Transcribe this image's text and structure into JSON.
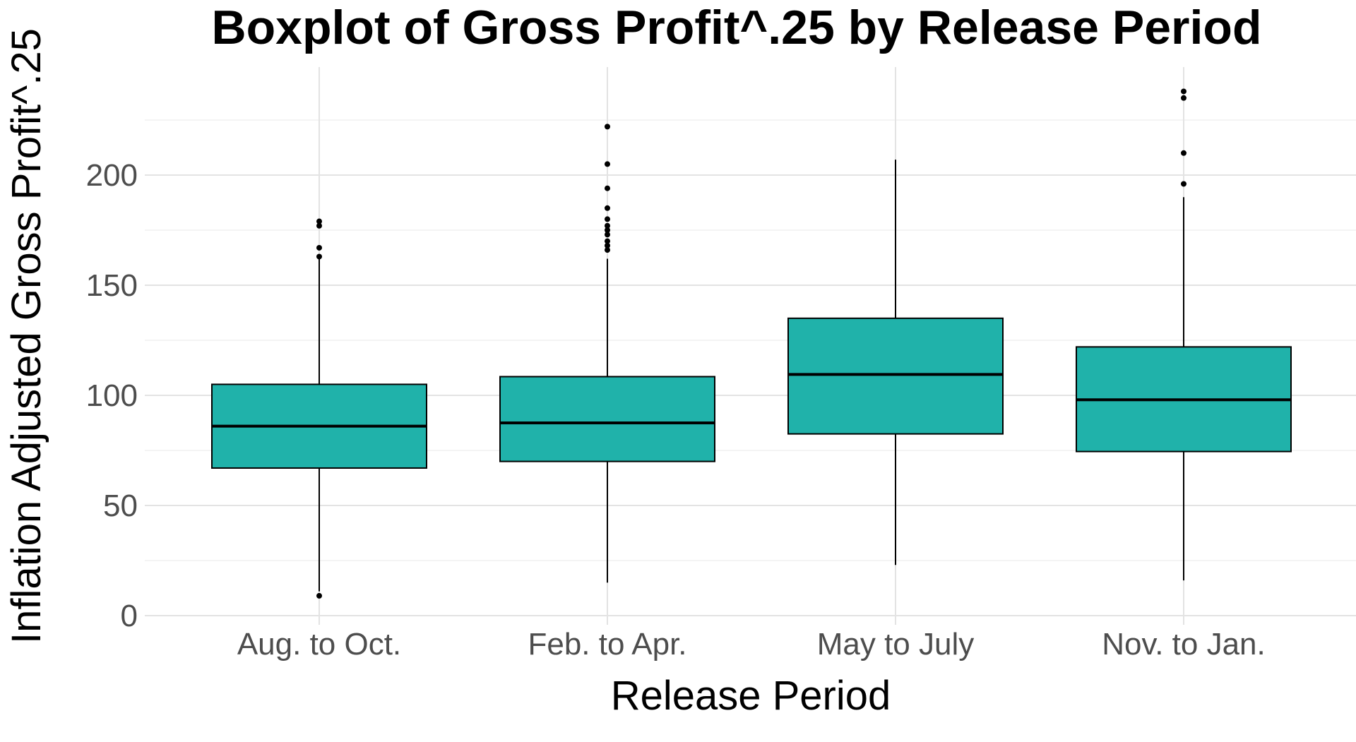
{
  "chart_data": {
    "type": "boxplot",
    "title": "Boxplot of Gross Profit^.25 by Release Period",
    "xlabel": "Release Period",
    "ylabel": "Inflation Adjusted Gross Profit^.25",
    "ylim": [
      -5,
      248
    ],
    "yticks": [
      0,
      50,
      100,
      150,
      200
    ],
    "ytick_labels": [
      "0",
      "50",
      "100",
      "150",
      "200"
    ],
    "grid": true,
    "fill_color": "#20B2AA",
    "categories": [
      "Aug. to Oct.",
      "Feb. to Apr.",
      "May to July",
      "Nov. to Jan."
    ],
    "boxes": [
      {
        "category": "Aug. to Oct.",
        "whisker_low": 11,
        "q1": 67,
        "median": 86,
        "q3": 105,
        "whisker_high": 162,
        "outliers": [
          9,
          163,
          167,
          177,
          179
        ]
      },
      {
        "category": "Feb. to Apr.",
        "whisker_low": 15,
        "q1": 70,
        "median": 87.5,
        "q3": 108.5,
        "whisker_high": 162,
        "outliers": [
          166,
          168,
          170,
          173,
          175,
          177,
          180,
          185,
          194,
          205,
          222
        ]
      },
      {
        "category": "May to July",
        "whisker_low": 23,
        "q1": 82.5,
        "median": 109.5,
        "q3": 135,
        "whisker_high": 207,
        "outliers": []
      },
      {
        "category": "Nov. to Jan.",
        "whisker_low": 16,
        "q1": 74.5,
        "median": 98,
        "q3": 122,
        "whisker_high": 190,
        "outliers": [
          196,
          210,
          235,
          238
        ]
      }
    ]
  }
}
